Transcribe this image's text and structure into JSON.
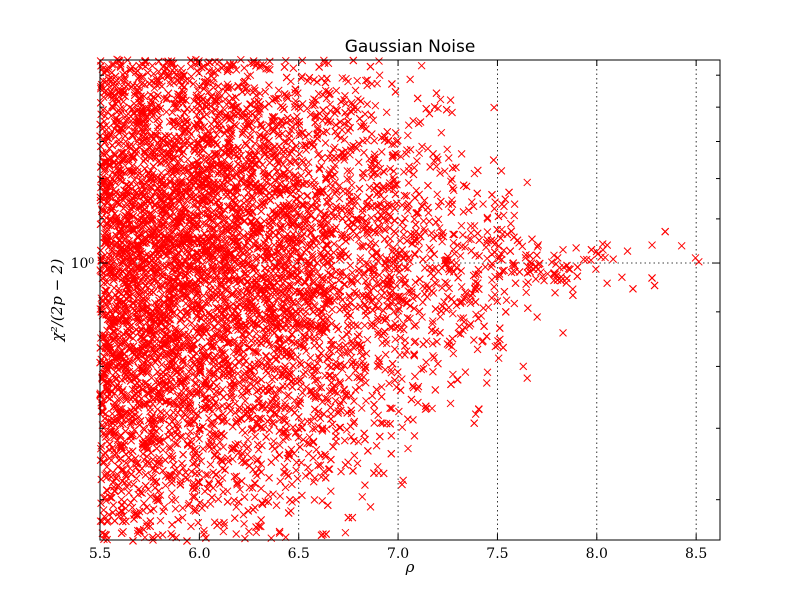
{
  "chart_data": {
    "type": "scatter",
    "title": "Gaussian Noise",
    "xlabel": "ρ",
    "ylabel": "χ²/(2p − 2)",
    "xlim": [
      5.5,
      8.62
    ],
    "ylim": [
      0.55,
      1.55
    ],
    "yscale": "log",
    "xticks": [
      "5.5",
      "6.0",
      "6.5",
      "7.0",
      "7.5",
      "8.0",
      "8.5"
    ],
    "yticks": [
      {
        "value": 1.0,
        "label": "10⁰"
      }
    ],
    "grid": true,
    "marker": "x",
    "marker_color": "#ff0000",
    "series": [
      {
        "points": [
          [
            7.52,
            1.22
          ],
          [
            7.65,
            1.19
          ],
          [
            7.58,
            1.0
          ],
          [
            7.7,
            0.89
          ],
          [
            7.83,
            0.86
          ],
          [
            7.4,
            0.83
          ],
          [
            7.45,
            0.79
          ],
          [
            7.63,
            0.8
          ],
          [
            7.65,
            0.78
          ],
          [
            7.05,
            0.67
          ],
          [
            7.02,
            0.62
          ],
          [
            6.8,
            0.68
          ],
          [
            6.78,
            0.66
          ],
          [
            6.28,
            0.59
          ],
          [
            5.7,
            0.56
          ],
          [
            6.12,
            0.61
          ],
          [
            6.52,
            1.41
          ],
          [
            6.35,
            1.41
          ],
          [
            6.48,
            1.4
          ],
          [
            6.18,
            1.4
          ],
          [
            7.28,
            1.17
          ],
          [
            7.38,
            1.13
          ],
          [
            7.45,
            1.1
          ],
          [
            7.47,
            1.05
          ],
          [
            7.1,
            0.74
          ],
          [
            6.9,
            0.72
          ],
          [
            6.62,
            0.7
          ],
          [
            6.45,
            0.66
          ],
          [
            6.27,
            0.64
          ],
          [
            6.05,
            0.62
          ],
          [
            5.88,
            0.6
          ],
          [
            5.62,
            0.58
          ],
          [
            7.25,
            0.93
          ],
          [
            7.32,
            0.95
          ],
          [
            7.2,
            1.25
          ],
          [
            7.15,
            1.28
          ],
          [
            6.95,
            1.3
          ],
          [
            6.75,
            1.33
          ],
          [
            6.62,
            1.36
          ],
          [
            6.3,
            1.38
          ]
        ]
      }
    ],
    "density_region": {
      "mu": 1.0,
      "y_halfspan_at_left": 0.42,
      "x_tip": 7.35,
      "count": 9000
    }
  }
}
